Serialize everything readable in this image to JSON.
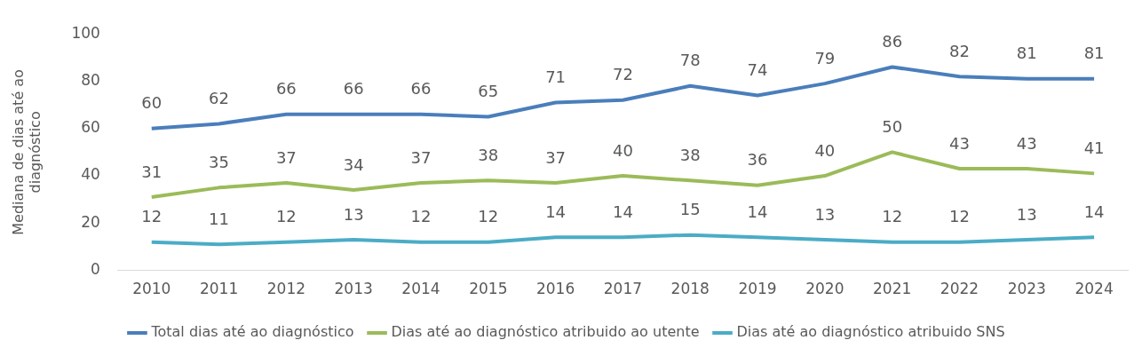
{
  "chart_data": {
    "type": "line",
    "ylabel": "Mediana de dias até ao diagnóstico",
    "categories": [
      "2010",
      "2011",
      "2012",
      "2013",
      "2014",
      "2015",
      "2016",
      "2017",
      "2018",
      "2019",
      "2020",
      "2021",
      "2022",
      "2023",
      "2024"
    ],
    "series": [
      {
        "name": "Total dias até ao diagnóstico",
        "color": "#4a7ebb",
        "values": [
          60,
          62,
          66,
          66,
          66,
          65,
          71,
          72,
          78,
          74,
          79,
          86,
          82,
          81,
          81
        ]
      },
      {
        "name": "Dias até ao diagnóstico atribuido ao utente",
        "color": "#9bbb59",
        "values": [
          31,
          35,
          37,
          34,
          37,
          38,
          37,
          40,
          38,
          36,
          40,
          50,
          43,
          43,
          41
        ]
      },
      {
        "name": "Dias até ao diagnóstico atribuido SNS",
        "color": "#4bacc6",
        "values": [
          12,
          11,
          12,
          13,
          12,
          12,
          14,
          14,
          15,
          14,
          13,
          12,
          12,
          13,
          14
        ]
      }
    ],
    "ylim": [
      0,
      100
    ],
    "yticks": [
      0,
      20,
      40,
      60,
      80,
      100
    ],
    "grid": false,
    "legend": "bottom",
    "data_labels": true,
    "marker": "none",
    "line_style": "solid"
  }
}
